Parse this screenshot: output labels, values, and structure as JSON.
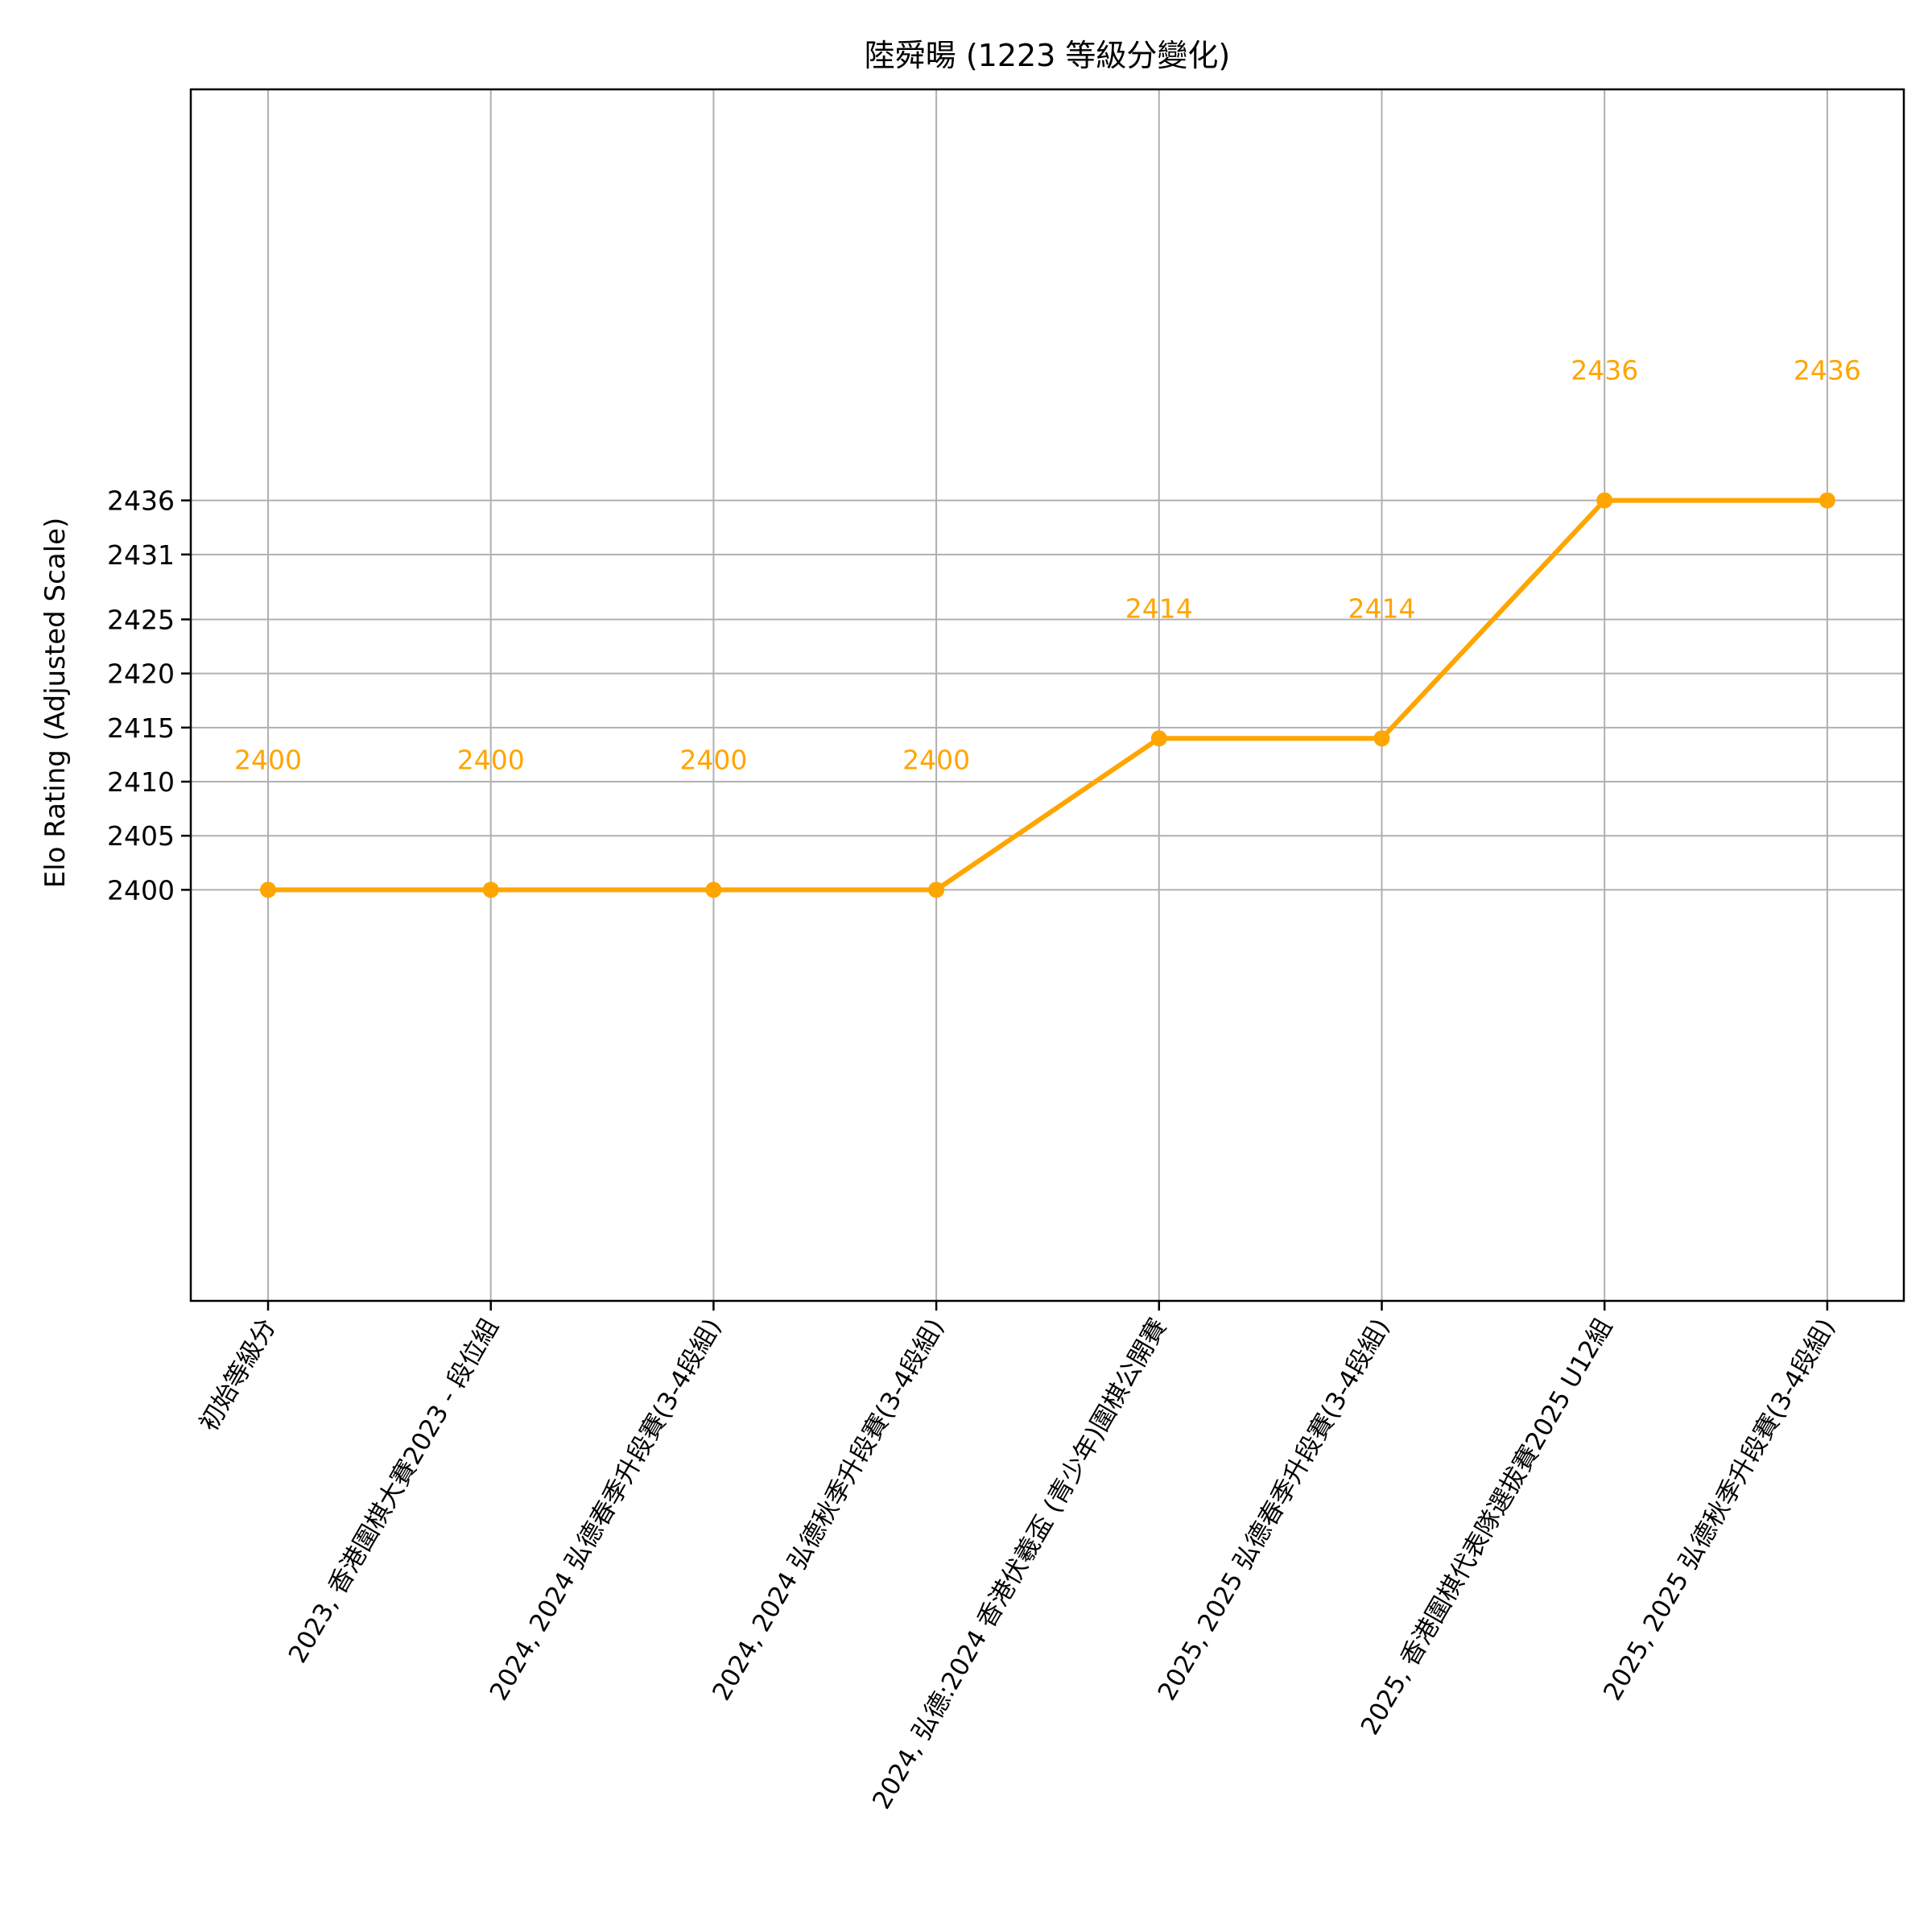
{
  "chart_data": {
    "type": "line",
    "title": "陸舜暘 (1223 等級分變化)",
    "xlabel": "",
    "ylabel": "Elo Rating (Adjusted Scale)",
    "categories": [
      "初始等級分",
      "2023, 香港圍棋大賽2023 - 段位組",
      "2024, 2024 弘德春季升段賽(3-4段組)",
      "2024, 2024 弘德秋季升段賽(3-4段組)",
      "2024, 弘德:2024 香港伏羲盃 (青少年)圍棋公開賽",
      "2025, 2025 弘德春季升段賽(3-4段組)",
      "2025, 香港圍棋代表隊選拔賽2025 U12組",
      "2025, 2025 弘德秋季升段賽(3-4段組)"
    ],
    "series": [
      {
        "values": [
          2400,
          2400,
          2400,
          2400,
          2414,
          2414,
          2436,
          2436
        ],
        "data_labels": [
          "2400",
          "2400",
          "2400",
          "2400",
          "2414",
          "2414",
          "2436",
          "2436"
        ]
      }
    ],
    "yticks": [
      2400,
      2405,
      2410,
      2415,
      2420,
      2425,
      2431,
      2436
    ],
    "ytick_labels": [
      "2400",
      "2405",
      "2410",
      "2415",
      "2420",
      "2425",
      "2431",
      "2436"
    ],
    "ylim": [
      2362,
      2474
    ],
    "grid": true,
    "colors": {
      "line": "#FFA500",
      "grid": "#B0B0B0",
      "axes": "#000000"
    }
  }
}
